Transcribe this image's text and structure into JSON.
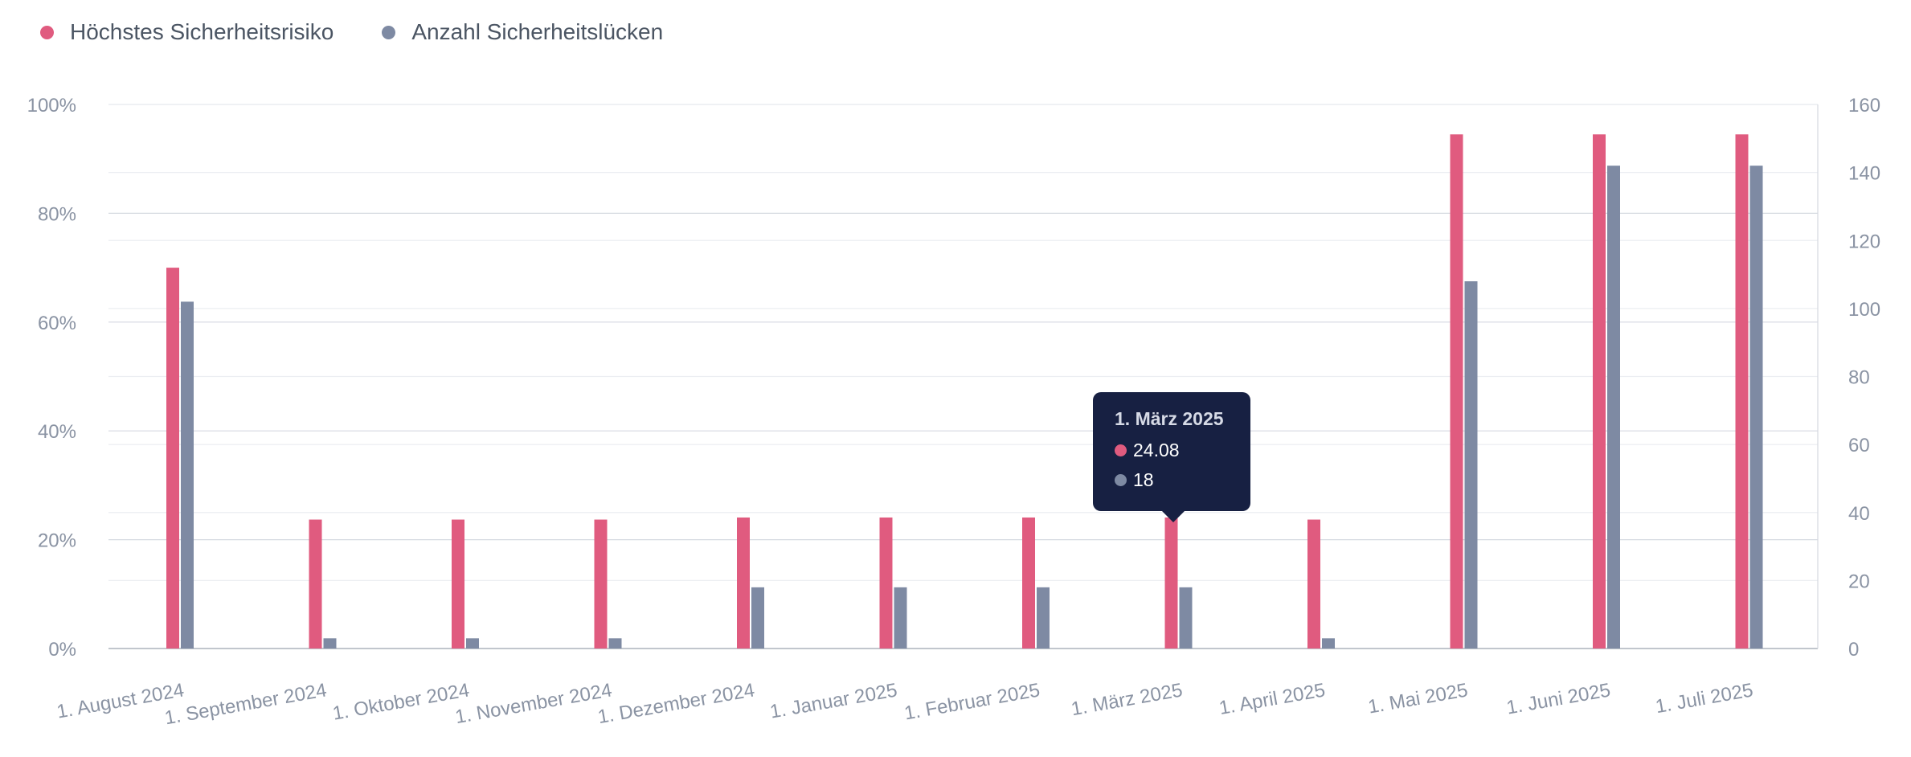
{
  "chart_data": {
    "type": "bar",
    "categories": [
      "1. August 2024",
      "1. September 2024",
      "1. Oktober 2024",
      "1. November 2024",
      "1. Dezember 2024",
      "1. Januar 2025",
      "1. Februar 2025",
      "1. März 2025",
      "1. April 2025",
      "1. Mai 2025",
      "1. Juni 2025",
      "1. Juli 2025"
    ],
    "series": [
      {
        "name": "Höchstes Sicherheitsrisiko",
        "axis": "left",
        "color": "#e05b7f",
        "values": [
          70,
          23.7,
          23.7,
          23.7,
          24.08,
          24.08,
          24.08,
          24.08,
          23.7,
          94.5,
          94.5,
          94.5
        ]
      },
      {
        "name": "Anzahl Sicherheitslücken",
        "axis": "right",
        "color": "#7e8aa3",
        "values": [
          102,
          3,
          3,
          3,
          18,
          18,
          18,
          18,
          3,
          108,
          142,
          142
        ]
      }
    ],
    "y_left": {
      "ylim": [
        0,
        100
      ],
      "ticks": [
        "0%",
        "20%",
        "40%",
        "60%",
        "80%",
        "100%"
      ]
    },
    "y_right": {
      "ylim": [
        0,
        160
      ],
      "ticks": [
        "0",
        "20",
        "40",
        "60",
        "80",
        "100",
        "120",
        "140",
        "160"
      ]
    },
    "grid": true,
    "legend_position": "top-left",
    "tooltip": {
      "title": "1. März 2025",
      "rows": [
        "24.08",
        "18"
      ]
    }
  }
}
